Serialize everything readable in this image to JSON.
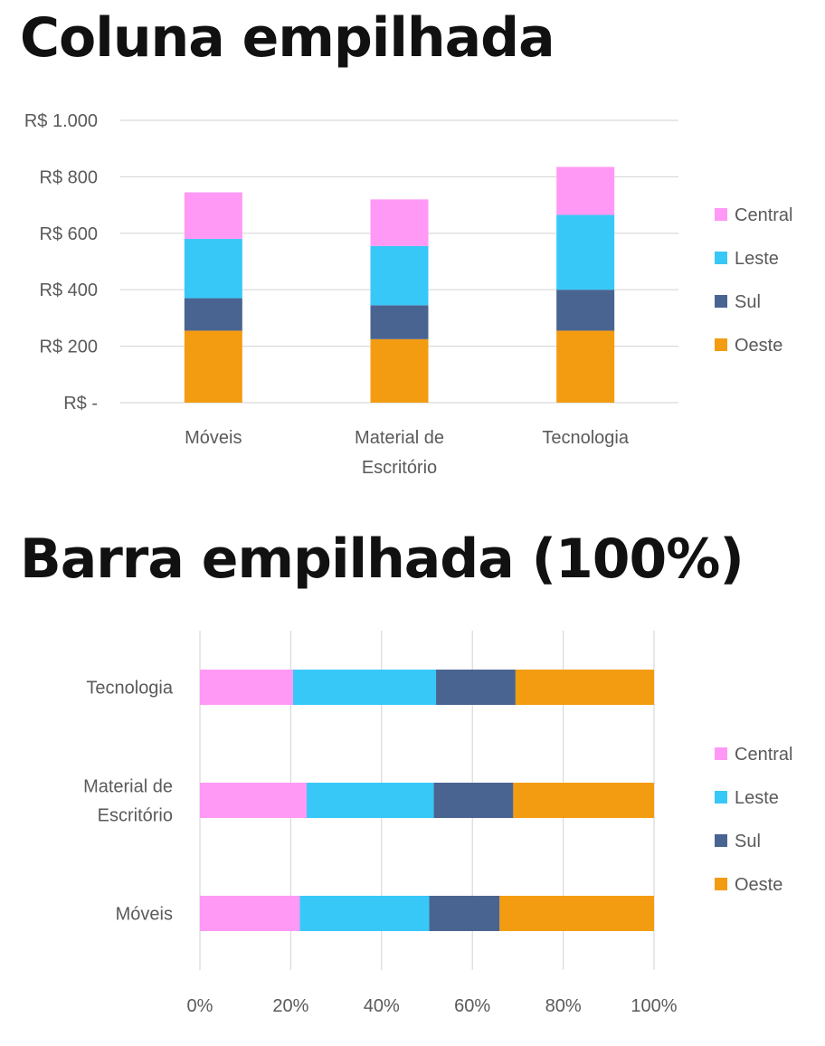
{
  "chart_data": [
    {
      "type": "bar",
      "stacked": true,
      "orientation": "vertical",
      "title": "Coluna empilhada",
      "categories": [
        "Móveis",
        "Material de Escritório",
        "Tecnologia"
      ],
      "category_lines": [
        [
          "Móveis"
        ],
        [
          "Material de",
          "Escritório"
        ],
        [
          "Tecnologia"
        ]
      ],
      "series": [
        {
          "name": "Oeste",
          "color": "#f39c12",
          "values": [
            255,
            225,
            255
          ]
        },
        {
          "name": "Sul",
          "color": "#4a6491",
          "values": [
            115,
            120,
            145
          ]
        },
        {
          "name": "Leste",
          "color": "#38c8f8",
          "values": [
            210,
            210,
            265
          ]
        },
        {
          "name": "Central",
          "color": "#ff99f5",
          "values": [
            165,
            165,
            170
          ]
        }
      ],
      "ylim": [
        0,
        1000
      ],
      "yticks": [
        0,
        200,
        400,
        600,
        800,
        1000
      ],
      "ytick_labels": [
        "R$ -",
        "R$ 200",
        "R$ 400",
        "R$ 600",
        "R$ 800",
        "R$ 1.000"
      ],
      "grid": true,
      "legend": "right",
      "legend_order": [
        "Central",
        "Leste",
        "Sul",
        "Oeste"
      ]
    },
    {
      "type": "bar",
      "stacked": true,
      "orientation": "horizontal",
      "normalized": true,
      "title": "Barra empilhada (100%)",
      "categories": [
        "Tecnologia",
        "Material de Escritório",
        "Móveis"
      ],
      "category_lines": [
        [
          "Tecnologia"
        ],
        [
          "Material de",
          "Escritório"
        ],
        [
          "Móveis"
        ]
      ],
      "series": [
        {
          "name": "Central",
          "color": "#ff99f5",
          "values": [
            20.5,
            23.5,
            22
          ]
        },
        {
          "name": "Leste",
          "color": "#38c8f8",
          "values": [
            31.5,
            28,
            28.5
          ]
        },
        {
          "name": "Sul",
          "color": "#4a6491",
          "values": [
            17.5,
            17.5,
            15.5
          ]
        },
        {
          "name": "Oeste",
          "color": "#f39c12",
          "values": [
            30.5,
            31,
            34
          ]
        }
      ],
      "xlim": [
        0,
        100
      ],
      "xticks": [
        0,
        20,
        40,
        60,
        80,
        100
      ],
      "xtick_labels": [
        "0%",
        "20%",
        "40%",
        "60%",
        "80%",
        "100%"
      ],
      "grid": true,
      "legend": "right",
      "legend_order": [
        "Central",
        "Leste",
        "Sul",
        "Oeste"
      ]
    }
  ]
}
